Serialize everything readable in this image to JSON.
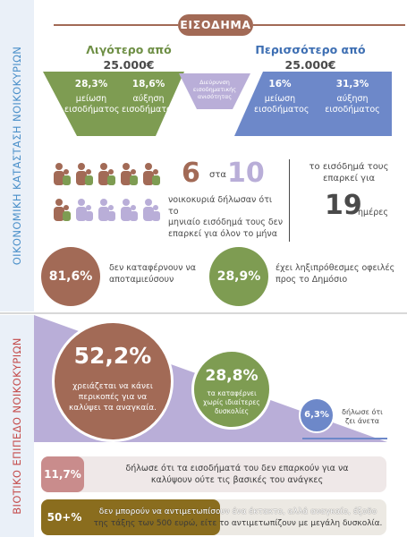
{
  "sidebar": {
    "section1_label": "ΟΙΚΟΝΟΜΙΚΗ ΚΑΤΑΣΤΑΣΗ ΝΟΙΚΟΚΥΡΙΩΝ",
    "section2_label": "ΒΙΟΤΙΚΟ ΕΠΙΠΕΔΟ ΝΟΙΚΟΚΥΡΙΩΝ"
  },
  "income": {
    "title": "ΕΙΣΟΔΗΜΑ",
    "less": {
      "line1": "Λιγότερο από",
      "line2": "25.000€"
    },
    "more": {
      "line1": "Περισσότερο από",
      "line2": "25.000€"
    },
    "cards": [
      {
        "pct": "28,3%",
        "line1": "μείωση",
        "line2": "εισοδήματος"
      },
      {
        "pct": "18,6%",
        "line1": "αύξηση",
        "line2": "εισοδήματος"
      },
      {
        "pct": "",
        "line1": "Διεύρυνση",
        "line2": "εισοδηματικής",
        "line3": "ανισότητας"
      },
      {
        "pct": "16%",
        "line1": "μείωση",
        "line2": "εισοδήματος"
      },
      {
        "pct": "31,3%",
        "line1": "αύξηση",
        "line2": "εισοδήματος"
      }
    ]
  },
  "households": {
    "count": "6",
    "connector": "στα",
    "total": "10",
    "text_line1": "νοικοκυριά δήλωσαν ότι το",
    "text_line2": "μηνιαίο εισόδημά τους δεν",
    "text_line3": "επαρκεί για όλον το μήνα",
    "days_intro_line1": "το εισόδημά τους",
    "days_intro_line2": "επαρκεί για",
    "days": "19",
    "days_unit": "ημέρες"
  },
  "stats": [
    {
      "value": "81,6%",
      "line1": "δεν καταφέρνουν να",
      "line2": "αποταμιεύσουν"
    },
    {
      "value": "28,9%",
      "line1": "έχει ληξιπρόθεσμες οφειλές",
      "line2": "προς το Δημόσιο"
    }
  ],
  "living": {
    "big": {
      "value": "52,2%",
      "line1": "χρειάζεται να κάνει",
      "line2": "περικοπές για να",
      "line3": "καλύψει τα αναγκαία."
    },
    "mid": {
      "value": "28,8%",
      "line1": "τα καταφέρνει",
      "line2": "χωρίς ιδιαίτερες",
      "line3": "δυσκολίες"
    },
    "small": {
      "value": "6,3%",
      "line1": "δήλωσε ότι",
      "line2": "ζει άνετα"
    }
  },
  "bars": [
    {
      "value": "11,7%",
      "line1": "δήλωσε ότι τα εισοδήματά του δεν επαρκούν για να",
      "line2": "καλύψουν ούτε τις βασικές του ανάγκες"
    },
    {
      "value": "50+%",
      "line1": "δεν μπορούν να αντιμετωπίσουν ένα έκτακτο, αλλά αναγκαίο, έξοδο",
      "line2": "της τάξης των 500 ευρώ, είτε το αντιμετωπίζουν με μεγάλη δυσκολία."
    }
  ],
  "colors": {
    "brown": "#a26a56",
    "green": "#7e9c52",
    "lavender": "#b9aed8",
    "blue": "#6d88c9",
    "pink": "#c98c8c",
    "olive": "#8a6d1e"
  }
}
